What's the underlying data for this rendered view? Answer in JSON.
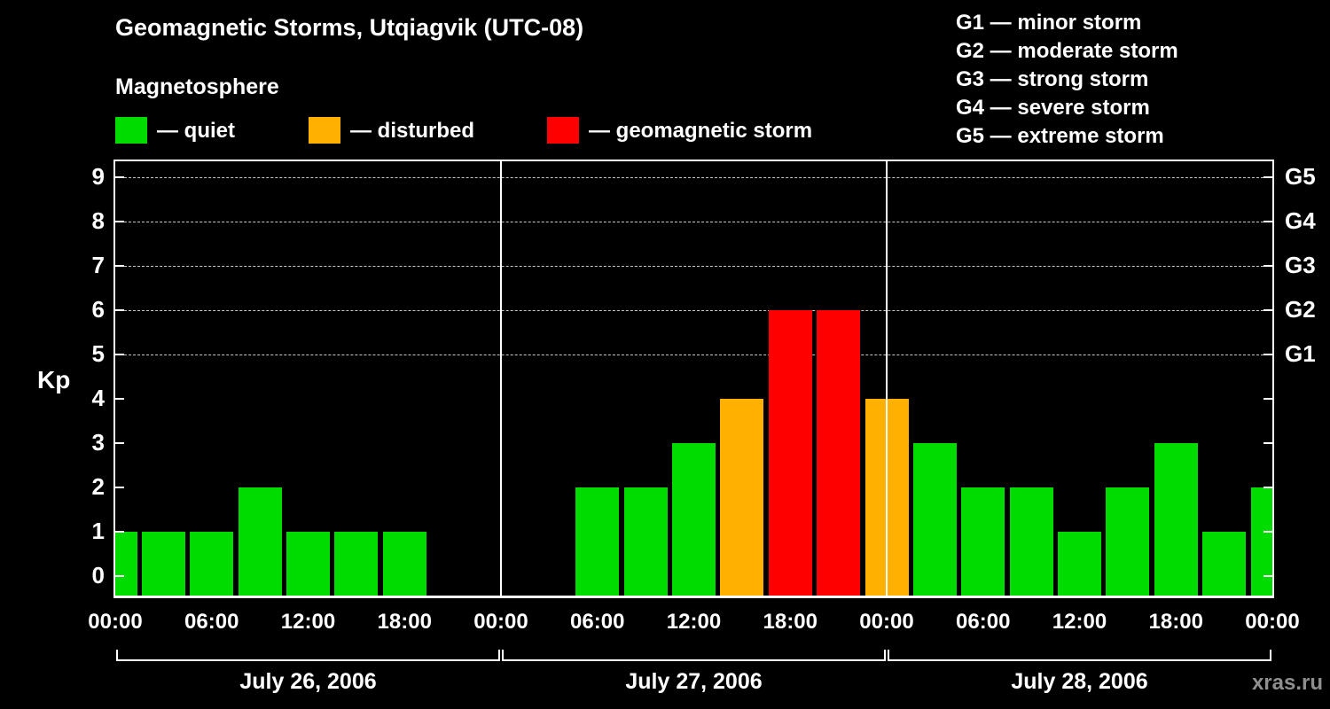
{
  "title": "Geomagnetic Storms, Utqiagvik (UTC-08)",
  "subtitle": "Magnetosphere",
  "kp_legend": [
    {
      "name": "quiet",
      "label": "— quiet"
    },
    {
      "name": "disturbed",
      "label": "— disturbed"
    },
    {
      "name": "storm",
      "label": "— geomagnetic storm"
    }
  ],
  "g_legend": [
    "G1 — minor storm",
    "G2 — moderate storm",
    "G3 — strong storm",
    "G4 — severe storm",
    "G5 — extreme storm"
  ],
  "watermark": "xras.ru",
  "colors": {
    "quiet": "#00dc00",
    "disturbed": "#ffb000",
    "storm": "#ff0000",
    "background": "#000000",
    "foreground": "#ffffff",
    "gridline": "#c8c8c8",
    "watermark": "#8f8f8f"
  },
  "chart_data": {
    "type": "bar",
    "title": "Geomagnetic Storms, Utqiagvik (UTC-08)",
    "ylabel": "Kp",
    "ylim": [
      0,
      9
    ],
    "y_ticks": [
      0,
      1,
      2,
      3,
      4,
      5,
      6,
      7,
      8,
      9
    ],
    "g_levels": [
      {
        "label": "G5",
        "kp": 9
      },
      {
        "label": "G4",
        "kp": 8
      },
      {
        "label": "G3",
        "kp": 7
      },
      {
        "label": "G2",
        "kp": 6
      },
      {
        "label": "G1",
        "kp": 5
      }
    ],
    "time_step_hours": 3,
    "start": "July 26, 2006 00:00",
    "timezone": "UTC-08",
    "values_3h": [
      1,
      1,
      1,
      2,
      1,
      1,
      1,
      null,
      null,
      null,
      2,
      2,
      3,
      4,
      6,
      6,
      4,
      3,
      2,
      2,
      1,
      2,
      3,
      1,
      2
    ],
    "x_tick_labels": [
      "00:00",
      "06:00",
      "12:00",
      "18:00",
      "00:00",
      "06:00",
      "12:00",
      "18:00",
      "00:00",
      "06:00",
      "12:00",
      "18:00",
      "00:00"
    ],
    "day_labels": [
      "July 26, 2006",
      "July 27, 2006",
      "July 28, 2006"
    ],
    "color_rules": {
      "quiet_max": 3,
      "disturbed_max": 4,
      "storm_min": 5
    },
    "legend_position": "top-left",
    "grid": "dashed horizontal lines at G1–G5 levels (Kp 5–9)"
  }
}
